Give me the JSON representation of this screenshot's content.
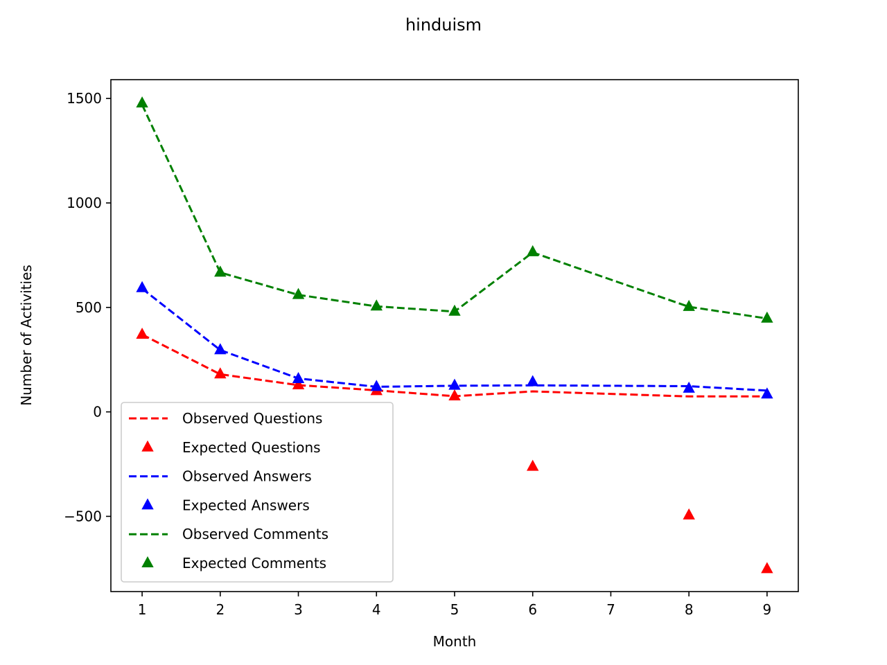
{
  "chart_data": {
    "type": "line",
    "title": "hinduism",
    "xlabel": "Month",
    "ylabel": "Number of Activities",
    "xlim": [
      0.6,
      9.4
    ],
    "ylim": [
      -860,
      1590
    ],
    "xticks": [
      1,
      2,
      3,
      4,
      5,
      6,
      7,
      8,
      9
    ],
    "yticks": [
      -500,
      0,
      500,
      1000,
      1500
    ],
    "ytick_labels": [
      "−500",
      "0",
      "500",
      "1000",
      "1500"
    ],
    "grid": false,
    "legend_position": "lower-left",
    "series": [
      {
        "name": "Observed Questions",
        "kind": "line",
        "style": "dashed",
        "color": "#ff0000",
        "x": [
          1,
          2,
          3,
          4,
          5,
          6,
          8,
          9
        ],
        "y": [
          370,
          180,
          128,
          103,
          75,
          98,
          74,
          74
        ]
      },
      {
        "name": "Expected Questions",
        "kind": "marker",
        "marker": "triangle",
        "color": "#ff0000",
        "x": [
          1,
          2,
          3,
          4,
          5,
          6,
          8,
          9
        ],
        "y": [
          370,
          180,
          128,
          100,
          75,
          -262,
          -495,
          -752
        ]
      },
      {
        "name": "Observed Answers",
        "kind": "line",
        "style": "dashed",
        "color": "#0000ff",
        "x": [
          1,
          2,
          3,
          4,
          5,
          6,
          8,
          9
        ],
        "y": [
          590,
          296,
          160,
          120,
          125,
          127,
          123,
          102
        ]
      },
      {
        "name": "Expected Answers",
        "kind": "marker",
        "marker": "triangle",
        "color": "#0000ff",
        "x": [
          1,
          2,
          3,
          4,
          5,
          6,
          8,
          9
        ],
        "y": [
          593,
          296,
          158,
          120,
          126,
          143,
          112,
          84
        ]
      },
      {
        "name": "Observed Comments",
        "kind": "line",
        "style": "dashed",
        "color": "#008000",
        "x": [
          1,
          2,
          3,
          4,
          5,
          6,
          8,
          9
        ],
        "y": [
          1470,
          667,
          560,
          505,
          480,
          763,
          503,
          447
        ]
      },
      {
        "name": "Expected Comments",
        "kind": "marker",
        "marker": "triangle",
        "color": "#008000",
        "x": [
          1,
          2,
          3,
          4,
          5,
          6,
          8,
          9
        ],
        "y": [
          1477,
          667,
          560,
          505,
          480,
          765,
          503,
          447
        ]
      }
    ]
  }
}
